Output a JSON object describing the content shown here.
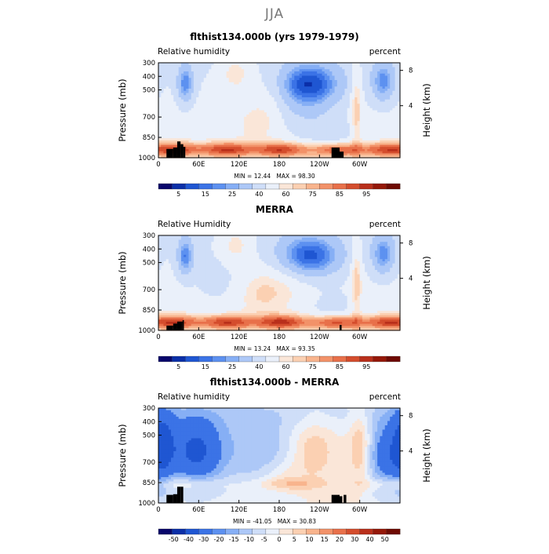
{
  "title": "JJA",
  "chart_data": [
    {
      "type": "heatmap",
      "title": "flthist134.000b (yrs 1979-1979)",
      "left_label": "Relative humidity",
      "right_label": "percent",
      "ylabel": "Pressure (mb)",
      "ylabel_right": "Height (km)",
      "x_ticks": [
        "0",
        "60E",
        "120E",
        "180",
        "120W",
        "60W"
      ],
      "y_ticks": [
        "300",
        "400",
        "500",
        "700",
        "850",
        "1000"
      ],
      "y2_ticks": [
        "8",
        "4"
      ],
      "min_text": "MIN =    12.44",
      "max_text": "MAX =    98.30",
      "colorbar_labels": [
        "5",
        "15",
        "25",
        "40",
        "60",
        "75",
        "85",
        "95"
      ],
      "variant": "model"
    },
    {
      "type": "heatmap",
      "title": "MERRA",
      "left_label": "Relative Humidity",
      "right_label": "percent",
      "ylabel": "Pressure (mb)",
      "ylabel_right": "Height (km)",
      "x_ticks": [
        "0",
        "60E",
        "120E",
        "180",
        "120W",
        "60W"
      ],
      "y_ticks": [
        "300",
        "400",
        "500",
        "700",
        "850",
        "1000"
      ],
      "y2_ticks": [
        "8",
        "4"
      ],
      "min_text": "MIN =    13.24",
      "max_text": "MAX =    93.35",
      "colorbar_labels": [
        "5",
        "15",
        "25",
        "40",
        "60",
        "75",
        "85",
        "95"
      ],
      "variant": "obs"
    },
    {
      "type": "heatmap",
      "title": "flthist134.000b - MERRA",
      "left_label": "Relative humidity",
      "right_label": "percent",
      "ylabel": "Pressure (mb)",
      "ylabel_right": "Height (km)",
      "x_ticks": [
        "0",
        "60E",
        "120E",
        "180",
        "120W",
        "60W"
      ],
      "y_ticks": [
        "300",
        "400",
        "500",
        "700",
        "850",
        "1000"
      ],
      "y2_ticks": [
        "8",
        "4"
      ],
      "min_text": "MIN =   -41.05",
      "max_text": "MAX =    30.83",
      "colorbar_labels": [
        "-50",
        "-40",
        "-30",
        "-20",
        "-15",
        "-10",
        "-5",
        "0",
        "5",
        "10",
        "15",
        "20",
        "30",
        "40",
        "50"
      ],
      "variant": "diff"
    }
  ],
  "colors": {
    "humidity_scale": [
      "#08066b",
      "#0b2fa8",
      "#1f56d2",
      "#3b73e6",
      "#5d91f0",
      "#86aff5",
      "#adc8f7",
      "#cfdef8",
      "#eaf0fa",
      "#fae6d8",
      "#fbd0b2",
      "#f8b48d",
      "#f29269",
      "#e8704a",
      "#d44d2d",
      "#b92f1b",
      "#951808",
      "#6e0a02"
    ],
    "diff_scale": [
      "#08066b",
      "#0b2fa8",
      "#1f56d2",
      "#3b73e6",
      "#5d91f0",
      "#86aff5",
      "#adc8f7",
      "#cfdef8",
      "#eaf0fa",
      "#fae6d8",
      "#fbd0b2",
      "#f8b48d",
      "#f29269",
      "#e8704a",
      "#d44d2d",
      "#b92f1b",
      "#951808",
      "#6e0a02"
    ],
    "topography": "#000000"
  }
}
